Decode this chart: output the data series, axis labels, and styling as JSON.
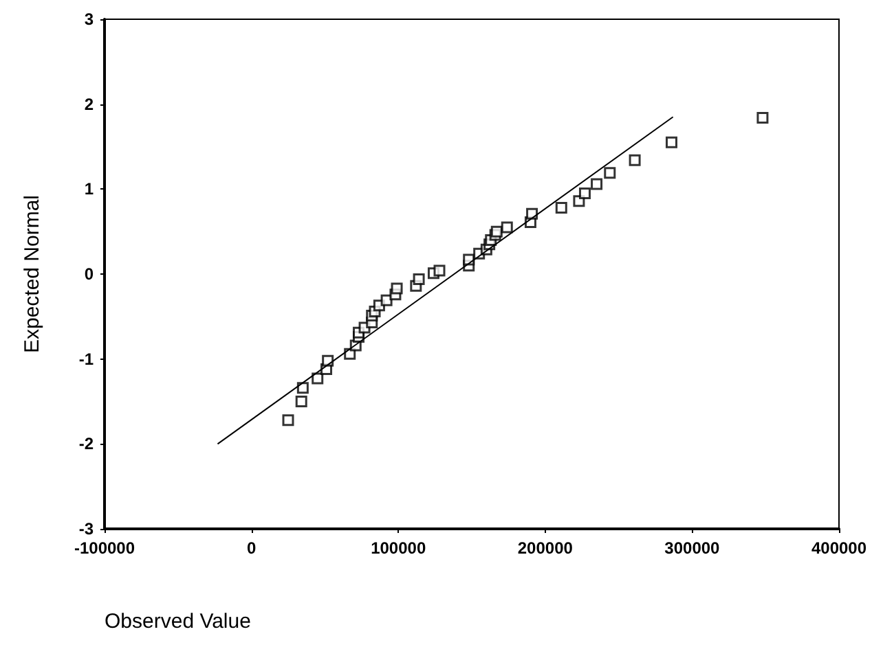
{
  "chart_data": {
    "type": "scatter",
    "xlabel": "Observed Value",
    "ylabel": "Expected Normal",
    "xlim": [
      -100000,
      400000
    ],
    "xticks": [
      -100000,
      0,
      100000,
      200000,
      300000,
      400000
    ],
    "ylim": [
      -3,
      3
    ],
    "yticks": [
      -3,
      -2,
      -1,
      0,
      1,
      2,
      3
    ],
    "grid": false,
    "series": [
      {
        "marker": "square",
        "color": "#000000",
        "x": [
          25000,
          34000,
          35000,
          45000,
          51000,
          52000,
          67000,
          71000,
          73000,
          73000,
          77000,
          82000,
          82000,
          84000,
          87000,
          92000,
          98000,
          99000,
          112000,
          114000,
          124000,
          128000,
          148000,
          148000,
          155000,
          160000,
          162000,
          163000,
          166000,
          167000,
          174000,
          190000,
          191000,
          211000,
          223000,
          227000,
          235000,
          244000,
          261000,
          286000,
          348000
        ],
        "values": [
          -1.72,
          -1.5,
          -1.34,
          -1.23,
          -1.12,
          -1.02,
          -0.94,
          -0.84,
          -0.74,
          -0.69,
          -0.63,
          -0.57,
          -0.49,
          -0.44,
          -0.37,
          -0.31,
          -0.24,
          -0.17,
          -0.14,
          -0.06,
          0.01,
          0.04,
          0.1,
          0.17,
          0.24,
          0.29,
          0.35,
          0.4,
          0.46,
          0.5,
          0.55,
          0.61,
          0.71,
          0.78,
          0.86,
          0.95,
          1.06,
          1.19,
          1.34,
          1.55,
          1.84
        ]
      },
      {
        "type": "line",
        "color": "#000000",
        "x": [
          -23000,
          287000
        ],
        "values": [
          -2.0,
          1.85
        ]
      }
    ]
  }
}
